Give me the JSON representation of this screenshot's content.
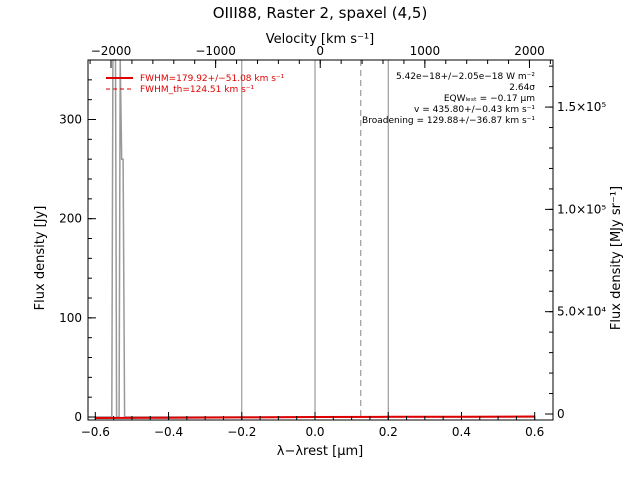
{
  "chart_data": {
    "type": "line",
    "title": "OIII88, Raster 2, spaxel (4,5)",
    "xlabel_html": "λ−λ<sub>rest</sub> [μm]",
    "xlabel": "λ−λrest [μm]",
    "ylabel_left": "Flux density [Jy]",
    "ylabel_right": "Flux density [MJy sr⁻¹]",
    "xlabel_top": "Velocity [km s⁻¹]",
    "xlim": [
      -0.62,
      0.65
    ],
    "ylim": [
      -3,
      360
    ],
    "x_ticks": [
      -0.6,
      -0.4,
      -0.2,
      0.0,
      0.2,
      0.4,
      0.6
    ],
    "x_tick_labels": [
      "−0.6",
      "−0.4",
      "−0.2",
      "0.0",
      "0.2",
      "0.4",
      "0.6"
    ],
    "y_ticks": [
      0,
      100,
      200,
      300
    ],
    "y_tick_labels": [
      "0",
      "100",
      "200",
      "300"
    ],
    "top_ticks": [
      -2000,
      -1000,
      0,
      1000,
      2000
    ],
    "top_tick_labels": [
      "−2000",
      "−1000",
      "0",
      "1000",
      "2000"
    ],
    "right_ticks": [
      0,
      50000,
      100000,
      150000
    ],
    "right_tick_labels": [
      "0",
      "5.0×10⁴",
      "1.0×10⁵",
      "1.5×10⁵"
    ],
    "vlines_solid": [
      -0.2,
      0.0,
      0.2
    ],
    "vlines_dashed": [
      0.125
    ],
    "series": [
      {
        "name": "data",
        "color": "#999999",
        "x": [
          -0.6,
          -0.57,
          -0.555,
          -0.552,
          -0.545,
          -0.542,
          -0.535,
          -0.532,
          -0.528,
          -0.524,
          -0.52,
          -0.4,
          -0.2,
          0.0,
          0.2,
          0.4,
          0.6
        ],
        "y": [
          0,
          0,
          0,
          360,
          360,
          0,
          0,
          360,
          260,
          260,
          0,
          0,
          0,
          0,
          0,
          0,
          0
        ]
      },
      {
        "name": "fit",
        "color": "#e00000",
        "x": [
          -0.6,
          -0.4,
          -0.2,
          0.0,
          0.2,
          0.4,
          0.6
        ],
        "y": [
          -1,
          -0.8,
          -0.4,
          0,
          0.2,
          0.3,
          0.5
        ]
      }
    ],
    "legend": [
      {
        "label": "FWHM=179.92+/−51.08 km s⁻¹",
        "style": "solid",
        "color": "#e00000"
      },
      {
        "label": "FWHM_th=124.51 km s⁻¹",
        "style": "dashed",
        "color": "#e00000"
      }
    ],
    "annotations": [
      "5.42e−18+/−2.05e−18 W m⁻²",
      "2.64σ",
      "EQWₗₑₛₜ = −0.17 μm",
      "v = 435.80+/−0.43 km s⁻¹",
      "Broadening = 129.88+/−36.87 km s⁻¹"
    ],
    "legend_position": "top-left",
    "annotation_position": "top-right",
    "grid": false
  }
}
